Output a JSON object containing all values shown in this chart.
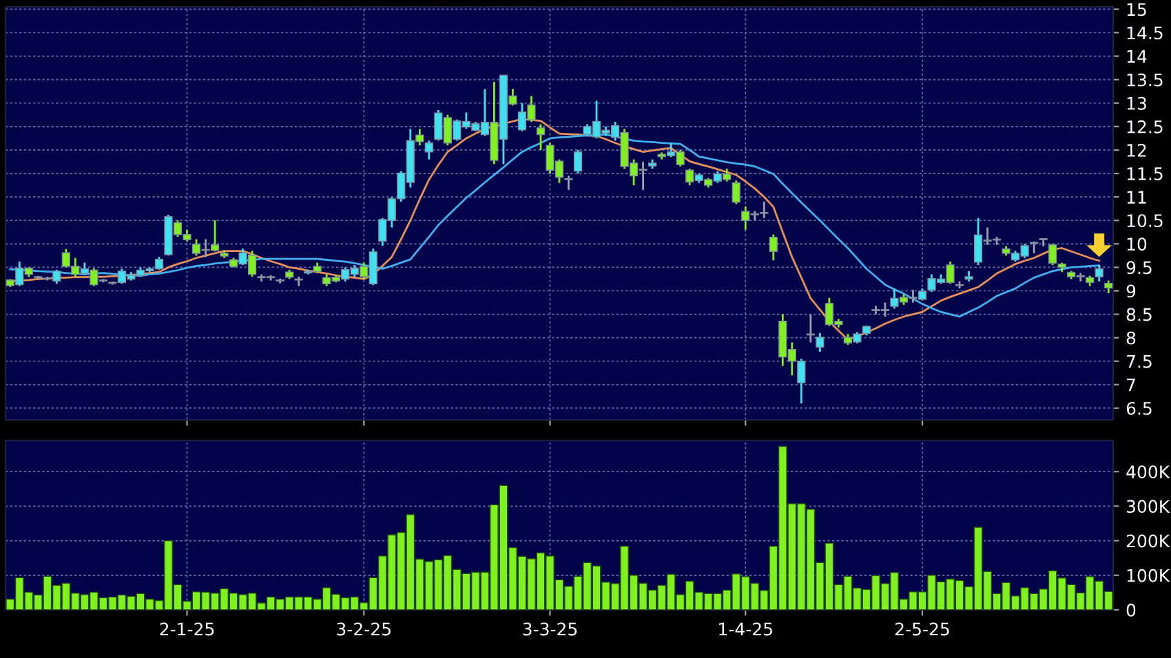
{
  "chart_data": [
    {
      "type": "candlestick",
      "categories": [
        null,
        null,
        null,
        null,
        null,
        null,
        null,
        null,
        null,
        null,
        null,
        null,
        null,
        null,
        null,
        null,
        null,
        null,
        null,
        null,
        null,
        null,
        null,
        null,
        null,
        null,
        null,
        null,
        null,
        null,
        null,
        null,
        null,
        null,
        null,
        null,
        null,
        null,
        null,
        null,
        null,
        null,
        null,
        null,
        null,
        null,
        null,
        null,
        null,
        null,
        null,
        null,
        null,
        null,
        null,
        null,
        null,
        null,
        null,
        null,
        null,
        null,
        null,
        null,
        null,
        null,
        null,
        null,
        null,
        null,
        null,
        null,
        null,
        null,
        null,
        null,
        null,
        null,
        null,
        null,
        null,
        null,
        null,
        null,
        null,
        null,
        null,
        null,
        null,
        null,
        null,
        null,
        null,
        null,
        null,
        null,
        null,
        null,
        null,
        null,
        null,
        null,
        null,
        null,
        null,
        null,
        null,
        null,
        null,
        null,
        null,
        null,
        null,
        null,
        null,
        null,
        null,
        null,
        null
      ],
      "ohlc": [
        [
          9.23,
          9.25,
          9.08,
          9.11
        ],
        [
          9.13,
          9.62,
          9.1,
          9.48
        ],
        [
          9.48,
          9.5,
          9.3,
          9.35
        ],
        [
          9.28,
          9.32,
          9.25,
          9.28
        ],
        [
          9.25,
          9.3,
          9.22,
          9.25
        ],
        [
          9.21,
          9.45,
          9.15,
          9.42
        ],
        [
          9.81,
          9.89,
          9.5,
          9.52
        ],
        [
          9.52,
          9.7,
          9.3,
          9.35
        ],
        [
          9.37,
          9.6,
          9.33,
          9.47
        ],
        [
          9.44,
          9.48,
          9.1,
          9.13
        ],
        [
          9.21,
          9.25,
          9.18,
          9.21
        ],
        [
          9.16,
          9.2,
          9.13,
          9.16
        ],
        [
          9.18,
          9.47,
          9.15,
          9.42
        ],
        [
          9.25,
          9.4,
          9.22,
          9.33
        ],
        [
          9.33,
          9.5,
          9.3,
          9.44
        ],
        [
          9.43,
          9.5,
          9.4,
          9.47
        ],
        [
          9.47,
          9.72,
          9.45,
          9.67
        ],
        [
          9.77,
          10.62,
          9.75,
          10.58
        ],
        [
          10.45,
          10.5,
          10.15,
          10.2
        ],
        [
          10.2,
          10.3,
          10.05,
          10.09
        ],
        [
          9.99,
          10.1,
          9.75,
          9.8
        ],
        [
          9.86,
          10.1,
          9.72,
          9.86
        ],
        [
          9.98,
          10.5,
          9.84,
          9.86
        ],
        [
          9.8,
          9.85,
          9.7,
          9.74
        ],
        [
          9.66,
          9.7,
          9.5,
          9.52
        ],
        [
          9.57,
          9.9,
          9.55,
          9.81
        ],
        [
          9.76,
          9.85,
          9.3,
          9.35
        ],
        [
          9.28,
          9.35,
          9.2,
          9.28
        ],
        [
          9.28,
          9.33,
          9.22,
          9.28
        ],
        [
          9.21,
          9.26,
          9.16,
          9.21
        ],
        [
          9.4,
          9.45,
          9.25,
          9.29
        ],
        [
          9.23,
          9.3,
          9.1,
          9.23
        ],
        [
          9.38,
          9.45,
          9.35,
          9.41
        ],
        [
          9.52,
          9.6,
          9.38,
          9.41
        ],
        [
          9.28,
          9.35,
          9.1,
          9.15
        ],
        [
          9.29,
          9.33,
          9.18,
          9.21
        ],
        [
          9.25,
          9.5,
          9.2,
          9.45
        ],
        [
          9.35,
          9.55,
          9.3,
          9.48
        ],
        [
          9.52,
          9.6,
          9.25,
          9.3
        ],
        [
          9.15,
          9.9,
          9.12,
          9.83
        ],
        [
          10.06,
          10.55,
          9.96,
          10.52
        ],
        [
          10.5,
          11.0,
          10.35,
          10.96
        ],
        [
          10.96,
          11.55,
          10.9,
          11.51
        ],
        [
          11.31,
          12.45,
          11.2,
          12.2
        ],
        [
          12.32,
          12.45,
          12.1,
          12.18
        ],
        [
          11.96,
          12.2,
          11.8,
          12.15
        ],
        [
          12.23,
          12.85,
          12.2,
          12.79
        ],
        [
          12.69,
          12.75,
          12.1,
          12.15
        ],
        [
          12.23,
          12.65,
          12.2,
          12.62
        ],
        [
          12.49,
          12.8,
          12.45,
          12.61
        ],
        [
          12.42,
          12.6,
          12.4,
          12.56
        ],
        [
          12.33,
          13.3,
          12.3,
          12.59
        ],
        [
          12.59,
          13.45,
          11.7,
          11.78
        ],
        [
          12.23,
          13.6,
          11.7,
          13.59
        ],
        [
          13.15,
          13.3,
          12.95,
          12.98
        ],
        [
          12.43,
          13.0,
          12.4,
          12.81
        ],
        [
          12.96,
          13.15,
          12.6,
          12.64
        ],
        [
          12.47,
          12.55,
          12.0,
          12.33
        ],
        [
          12.1,
          12.15,
          11.5,
          11.57
        ],
        [
          11.76,
          11.8,
          11.3,
          11.42
        ],
        [
          11.37,
          11.45,
          11.15,
          11.37
        ],
        [
          11.55,
          12.0,
          11.5,
          11.96
        ],
        [
          12.33,
          12.55,
          12.3,
          12.5
        ],
        [
          12.28,
          13.05,
          12.25,
          12.61
        ],
        [
          12.36,
          12.5,
          12.3,
          12.42
        ],
        [
          12.27,
          12.6,
          12.2,
          12.52
        ],
        [
          12.37,
          12.45,
          11.6,
          11.65
        ],
        [
          11.72,
          11.8,
          11.25,
          11.45
        ],
        [
          11.57,
          11.75,
          11.15,
          11.57
        ],
        [
          11.66,
          11.8,
          11.6,
          11.72
        ],
        [
          11.91,
          11.95,
          11.8,
          11.86
        ],
        [
          11.88,
          12.15,
          11.85,
          11.96
        ],
        [
          11.96,
          12.0,
          11.65,
          11.69
        ],
        [
          11.57,
          11.6,
          11.25,
          11.32
        ],
        [
          11.35,
          11.5,
          11.3,
          11.47
        ],
        [
          11.37,
          11.4,
          11.2,
          11.25
        ],
        [
          11.34,
          11.55,
          11.3,
          11.49
        ],
        [
          11.49,
          11.6,
          11.33,
          11.37
        ],
        [
          11.3,
          11.35,
          10.85,
          10.89
        ],
        [
          10.69,
          10.8,
          10.3,
          10.5
        ],
        [
          10.62,
          10.7,
          10.5,
          10.62
        ],
        [
          10.65,
          10.9,
          10.55,
          10.65
        ],
        [
          10.14,
          10.2,
          9.65,
          9.84
        ],
        [
          8.35,
          8.5,
          7.4,
          7.59
        ],
        [
          7.75,
          7.9,
          7.2,
          7.5
        ],
        [
          7.04,
          7.55,
          6.6,
          7.5
        ],
        [
          8.06,
          8.5,
          7.9,
          8.06
        ],
        [
          7.8,
          8.1,
          7.7,
          8.01
        ],
        [
          8.73,
          8.85,
          8.25,
          8.28
        ],
        [
          8.35,
          8.4,
          8.22,
          8.28
        ],
        [
          8.01,
          8.08,
          7.85,
          7.89
        ],
        [
          7.91,
          8.12,
          7.88,
          8.08
        ],
        [
          8.09,
          8.26,
          8.05,
          8.24
        ],
        [
          8.58,
          8.68,
          8.5,
          8.58
        ],
        [
          8.58,
          8.75,
          8.45,
          8.58
        ],
        [
          8.67,
          9.05,
          8.62,
          8.84
        ],
        [
          8.86,
          8.92,
          8.7,
          8.76
        ],
        [
          8.84,
          9.02,
          8.75,
          8.84
        ],
        [
          8.82,
          9.05,
          8.8,
          8.99
        ],
        [
          9.02,
          9.35,
          8.98,
          9.26
        ],
        [
          9.18,
          9.35,
          9.15,
          9.25
        ],
        [
          9.55,
          9.62,
          9.15,
          9.18
        ],
        [
          9.11,
          9.2,
          9.05,
          9.11
        ],
        [
          9.25,
          9.42,
          9.2,
          9.3
        ],
        [
          9.61,
          10.55,
          9.55,
          10.19
        ],
        [
          10.06,
          10.35,
          9.98,
          10.06
        ],
        [
          10.08,
          10.15,
          9.98,
          10.08
        ],
        [
          9.89,
          9.95,
          9.75,
          9.8
        ],
        [
          9.66,
          9.85,
          9.62,
          9.8
        ],
        [
          9.74,
          10.0,
          9.7,
          9.96
        ],
        [
          10.01,
          10.05,
          9.8,
          10.01
        ],
        [
          10.09,
          10.12,
          9.95,
          10.09
        ],
        [
          9.98,
          10.0,
          9.55,
          9.59
        ],
        [
          9.57,
          9.6,
          9.4,
          9.5
        ],
        [
          9.39,
          9.42,
          9.25,
          9.3
        ],
        [
          9.3,
          9.38,
          9.2,
          9.3
        ],
        [
          9.28,
          9.32,
          9.1,
          9.18
        ],
        [
          9.3,
          9.55,
          9.2,
          9.47
        ],
        [
          9.16,
          9.22,
          8.95,
          9.06
        ]
      ],
      "colors": [
        "#80f020",
        "#40e0f0",
        "#80f020",
        "#a0a0b0",
        "#a0a0b0",
        "#40e0f0",
        "#80f020",
        "#80f020",
        "#40e0f0",
        "#80f020",
        "#a0a0b0",
        "#a0a0b0",
        "#40e0f0",
        "#40e0f0",
        "#40e0f0",
        "#40e0f0",
        "#40e0f0",
        "#40e0f0",
        "#80f020",
        "#80f020",
        "#80f020",
        "#a0a0b0",
        "#80f020",
        "#80f020",
        "#80f020",
        "#40e0f0",
        "#80f020",
        "#a0a0b0",
        "#a0a0b0",
        "#a0a0b0",
        "#80f020",
        "#a0a0b0",
        "#40e0f0",
        "#80f020",
        "#80f020",
        "#80f020",
        "#40e0f0",
        "#40e0f0",
        "#80f020",
        "#40e0f0",
        "#40e0f0",
        "#40e0f0",
        "#40e0f0",
        "#40e0f0",
        "#80f020",
        "#40e0f0",
        "#40e0f0",
        "#80f020",
        "#40e0f0",
        "#40e0f0",
        "#40e0f0",
        "#40e0f0",
        "#80f020",
        "#40e0f0",
        "#80f020",
        "#40e0f0",
        "#80f020",
        "#80f020",
        "#80f020",
        "#80f020",
        "#a0a0b0",
        "#40e0f0",
        "#40e0f0",
        "#40e0f0",
        "#40e0f0",
        "#40e0f0",
        "#80f020",
        "#80f020",
        "#a0a0b0",
        "#40e0f0",
        "#80f020",
        "#40e0f0",
        "#80f020",
        "#80f020",
        "#40e0f0",
        "#80f020",
        "#40e0f0",
        "#80f020",
        "#80f020",
        "#80f020",
        "#a0a0b0",
        "#a0a0b0",
        "#80f020",
        "#80f020",
        "#80f020",
        "#40e0f0",
        "#a0a0b0",
        "#40e0f0",
        "#80f020",
        "#80f020",
        "#80f020",
        "#40e0f0",
        "#40e0f0",
        "#a0a0b0",
        "#a0a0b0",
        "#40e0f0",
        "#80f020",
        "#a0a0b0",
        "#40e0f0",
        "#40e0f0",
        "#40e0f0",
        "#80f020",
        "#a0a0b0",
        "#40e0f0",
        "#40e0f0",
        "#a0a0b0",
        "#a0a0b0",
        "#80f020",
        "#40e0f0",
        "#40e0f0",
        "#a0a0b0",
        "#a0a0b0",
        "#80f020",
        "#80f020",
        "#80f020",
        "#a0a0b0",
        "#80f020",
        "#40e0f0",
        "#80f020"
      ],
      "series": [
        {
          "type": "line",
          "color": "#e8905a",
          "values": [
            9.2,
            9.22,
            9.23,
            9.25,
            9.26,
            9.28,
            9.28,
            9.29,
            9.29,
            9.3,
            9.3,
            9.31,
            9.32,
            9.34,
            9.35,
            9.38,
            9.4,
            9.5,
            9.57,
            9.63,
            9.7,
            9.75,
            9.8,
            9.85,
            9.85,
            9.85,
            9.78,
            9.7,
            9.63,
            9.57,
            9.5,
            9.47,
            9.43,
            9.4,
            9.37,
            9.33,
            9.3,
            9.28,
            9.25,
            9.35,
            9.53,
            9.72,
            10.1,
            10.5,
            10.95,
            11.37,
            11.68,
            11.96,
            12.1,
            12.25,
            12.35,
            12.45,
            12.5,
            12.56,
            12.61,
            12.66,
            12.64,
            12.62,
            12.48,
            12.35,
            12.34,
            12.33,
            12.31,
            12.3,
            12.23,
            12.15,
            12.08,
            12.02,
            11.96,
            11.99,
            12.02,
            12.04,
            11.9,
            11.76,
            11.7,
            11.65,
            11.59,
            11.53,
            11.47,
            11.33,
            11.18,
            11.0,
            10.79,
            10.25,
            9.72,
            9.28,
            8.84,
            8.6,
            8.35,
            8.15,
            7.96,
            8.03,
            8.11,
            8.2,
            8.3,
            8.38,
            8.45,
            8.5,
            8.55,
            8.67,
            8.79,
            8.87,
            8.94,
            9.01,
            9.08,
            9.22,
            9.37,
            9.47,
            9.57,
            9.64,
            9.7,
            9.79,
            9.88,
            9.91,
            9.84,
            9.77,
            9.7,
            9.64,
            null
          ]
        },
        {
          "type": "line",
          "color": "#40b0f0",
          "values": [
            9.46,
            9.45,
            9.44,
            9.42,
            9.41,
            9.4,
            9.38,
            9.37,
            9.35,
            9.37,
            9.38,
            9.36,
            9.35,
            9.33,
            9.32,
            9.35,
            9.37,
            9.4,
            9.44,
            9.49,
            9.53,
            9.55,
            9.58,
            9.6,
            9.62,
            9.64,
            9.66,
            9.68,
            9.68,
            9.68,
            9.68,
            9.68,
            9.68,
            9.68,
            9.66,
            9.64,
            9.62,
            9.59,
            9.55,
            9.51,
            9.47,
            9.53,
            9.6,
            9.67,
            9.91,
            10.15,
            10.4,
            10.6,
            10.79,
            10.98,
            11.14,
            11.31,
            11.47,
            11.63,
            11.8,
            11.96,
            12.06,
            12.15,
            12.25,
            12.27,
            12.28,
            12.3,
            12.31,
            12.32,
            12.33,
            12.29,
            12.24,
            12.2,
            12.18,
            12.17,
            12.15,
            12.14,
            12.13,
            12.0,
            11.86,
            11.82,
            11.78,
            11.74,
            11.71,
            11.69,
            11.65,
            11.57,
            11.49,
            11.28,
            11.08,
            10.88,
            10.69,
            10.5,
            10.3,
            10.1,
            9.91,
            9.69,
            9.47,
            9.3,
            9.13,
            9.03,
            8.94,
            8.83,
            8.72,
            8.63,
            8.55,
            8.5,
            8.45,
            8.55,
            8.64,
            8.76,
            8.89,
            8.97,
            9.05,
            9.17,
            9.28,
            9.35,
            9.42,
            9.46,
            9.5,
            9.51,
            9.53,
            9.54,
            null
          ]
        }
      ],
      "ylim": [
        6.25,
        15.05
      ],
      "yticks": [
        6.5,
        7,
        7.5,
        8,
        8.5,
        9,
        9.5,
        10,
        10.5,
        11,
        11.5,
        12,
        12.5,
        13,
        13.5,
        14,
        14.5,
        15
      ],
      "grid": true,
      "legend": false
    },
    {
      "type": "bar",
      "color": "#80f020",
      "categories": [
        null,
        null,
        null,
        null,
        null,
        null,
        null,
        null,
        null,
        null,
        null,
        null,
        null,
        null,
        null,
        null,
        null,
        null,
        null,
        "2-1-25",
        null,
        null,
        null,
        null,
        null,
        null,
        null,
        null,
        null,
        null,
        null,
        null,
        null,
        null,
        null,
        null,
        null,
        null,
        "3-2-25",
        null,
        null,
        null,
        null,
        null,
        null,
        null,
        null,
        null,
        null,
        null,
        null,
        null,
        null,
        null,
        null,
        null,
        null,
        null,
        "3-3-25",
        null,
        null,
        null,
        null,
        null,
        null,
        null,
        null,
        null,
        null,
        null,
        null,
        null,
        null,
        null,
        null,
        null,
        null,
        null,
        null,
        "1-4-25",
        null,
        null,
        null,
        null,
        null,
        null,
        null,
        null,
        null,
        null,
        null,
        null,
        null,
        null,
        null,
        null,
        null,
        null,
        "2-5-25",
        null,
        null,
        null,
        null,
        null,
        null,
        null,
        null,
        null,
        null,
        null,
        null,
        null,
        null,
        null,
        null,
        null,
        null,
        null,
        null
      ],
      "values": [
        31000,
        93000,
        51000,
        43000,
        97000,
        71000,
        77000,
        48000,
        44000,
        51000,
        35000,
        37000,
        43000,
        39000,
        47000,
        31000,
        27000,
        200000,
        73000,
        25000,
        52000,
        51000,
        48000,
        61000,
        48000,
        44000,
        48000,
        20000,
        37000,
        31000,
        37000,
        37000,
        37000,
        31000,
        64000,
        45000,
        35000,
        37000,
        21000,
        93000,
        156000,
        217000,
        224000,
        276000,
        147000,
        140000,
        145000,
        157000,
        117000,
        105000,
        109000,
        109000,
        304000,
        360000,
        180000,
        155000,
        148000,
        165000,
        156000,
        87000,
        68000,
        97000,
        137000,
        127000,
        80000,
        76000,
        184000,
        100000,
        77000,
        57000,
        71000,
        103000,
        44000,
        83000,
        51000,
        47000,
        47000,
        57000,
        104000,
        96000,
        77000,
        56000,
        184000,
        473000,
        307000,
        307000,
        291000,
        137000,
        193000,
        73000,
        97000,
        63000,
        59000,
        99000,
        76000,
        108000,
        31000,
        52000,
        52000,
        100000,
        81000,
        89000,
        85000,
        67000,
        239000,
        111000,
        47000,
        79000,
        40000,
        64000,
        47000,
        60000,
        113000,
        92000,
        73000,
        49000,
        96000,
        83000,
        53000
      ],
      "ylim": [
        0,
        490000
      ],
      "yticks": [
        {
          "value": 0,
          "label": "0"
        },
        {
          "value": 100000,
          "label": "100K"
        },
        {
          "value": 200000,
          "label": "200K"
        },
        {
          "value": 300000,
          "label": "300K"
        },
        {
          "value": 400000,
          "label": "400K"
        }
      ],
      "grid": true,
      "legend": false
    }
  ]
}
